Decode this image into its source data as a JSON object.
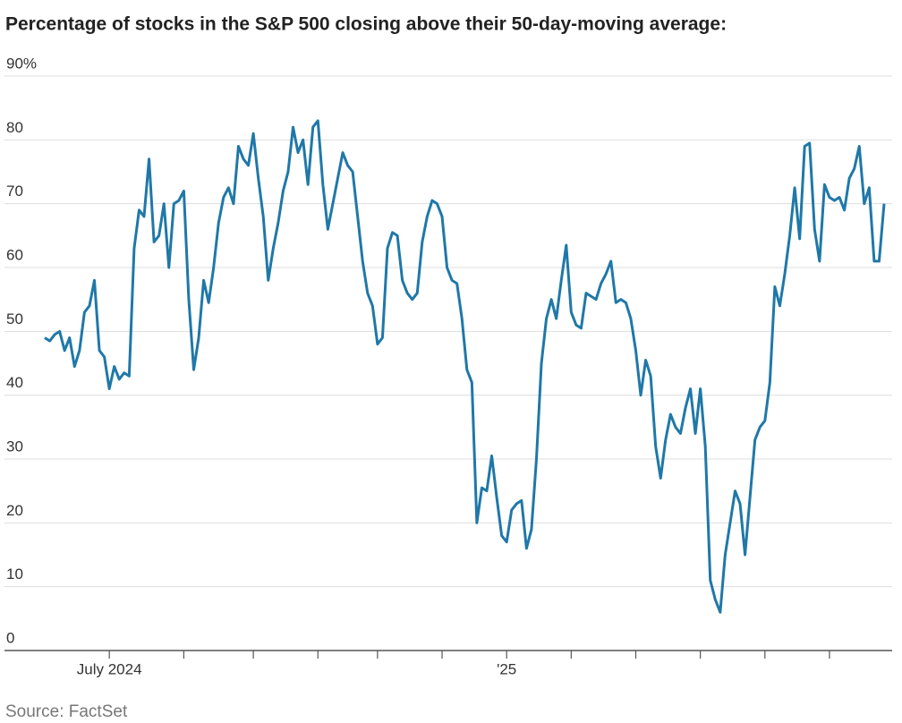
{
  "chart_data": {
    "type": "line",
    "title": "Percentage of stocks in the S&P 500 closing above their 50-day-moving average:",
    "source": "Source: FactSet",
    "categories": [
      null,
      null,
      null,
      null,
      null,
      null,
      null,
      null,
      null,
      null,
      null,
      null,
      null,
      "July 2024",
      null,
      null,
      null,
      null,
      null,
      null,
      null,
      null,
      null,
      null,
      null,
      null,
      null,
      null,
      null,
      null,
      null,
      null,
      null,
      null,
      null,
      null,
      null,
      null,
      null,
      null,
      null,
      null,
      null,
      null,
      null,
      null,
      null,
      null,
      null,
      null,
      null,
      null,
      null,
      null,
      null,
      null,
      null,
      null,
      null,
      null,
      null,
      null,
      null,
      null,
      null,
      null,
      null,
      null,
      null,
      null,
      null,
      null,
      null,
      null,
      null,
      null,
      null,
      null,
      null,
      null,
      null,
      null,
      null,
      null,
      null,
      null,
      null,
      null,
      null,
      null,
      null,
      null,
      null,
      "'25",
      null,
      null,
      null,
      null,
      null,
      null,
      null,
      null,
      null,
      null,
      null,
      null,
      null,
      null,
      null,
      null,
      null,
      null,
      null,
      null,
      null,
      null,
      null,
      null,
      null,
      null,
      null,
      null,
      null,
      null,
      null,
      null,
      null,
      null,
      null,
      null,
      null,
      null,
      null,
      null,
      null,
      null,
      null,
      null,
      null,
      null,
      null,
      null,
      null,
      null,
      null,
      null,
      null,
      null,
      null,
      null,
      null,
      null,
      null,
      null,
      null,
      null,
      null,
      null,
      null,
      null,
      null,
      null,
      null,
      null,
      null,
      null,
      null,
      null,
      null,
      null
    ],
    "series": [
      {
        "name": "S&P 500",
        "color": "#1f78a8",
        "values": [
          49,
          48.5,
          49.5,
          50,
          47,
          49,
          44.5,
          47,
          53,
          54,
          58,
          47,
          46,
          41,
          44.5,
          42.5,
          43.5,
          43,
          63,
          69,
          68,
          77,
          64,
          65,
          70,
          60,
          70,
          70.5,
          72,
          55,
          44,
          49,
          58,
          54.5,
          60,
          67,
          71,
          72.5,
          70,
          79,
          77,
          76,
          81,
          74,
          68,
          58,
          63,
          67,
          72,
          75,
          82,
          78,
          80,
          73,
          82,
          83,
          73,
          66,
          70,
          74,
          78,
          76,
          75,
          68,
          61,
          56,
          54,
          48,
          49,
          63,
          65.5,
          65,
          58,
          56,
          55,
          56,
          64,
          68,
          70.5,
          70,
          68,
          60,
          58,
          57.5,
          52,
          44,
          42,
          20,
          25.5,
          25,
          30.5,
          24,
          18,
          17,
          22,
          23,
          23.5,
          16,
          19,
          30,
          45,
          52,
          55,
          52,
          58,
          63.5,
          53,
          51,
          50.5,
          56,
          55.5,
          55,
          57.5,
          59,
          61,
          54.5,
          55,
          54.5,
          52,
          47,
          40,
          45.5,
          43,
          32,
          27,
          33,
          37,
          35,
          34,
          38,
          41,
          34,
          41,
          32,
          11,
          8,
          6,
          15,
          20,
          25,
          23,
          15,
          24,
          33,
          35,
          36,
          42,
          57,
          54,
          59,
          65,
          72.5,
          64.5,
          79,
          79.5,
          66,
          61,
          73,
          71,
          70.5,
          71,
          69,
          74,
          75.5,
          79,
          70,
          72.5,
          61,
          61,
          70
        ]
      }
    ],
    "xticks": [
      13,
      28,
      42,
      55,
      67,
      80,
      93,
      106,
      119,
      132,
      145,
      158
    ],
    "ylim": [
      0,
      90
    ],
    "yticks": [
      0,
      10,
      20,
      30,
      40,
      50,
      60,
      70,
      80,
      {
        "value": 90,
        "label": "90%"
      }
    ],
    "grid": true
  }
}
